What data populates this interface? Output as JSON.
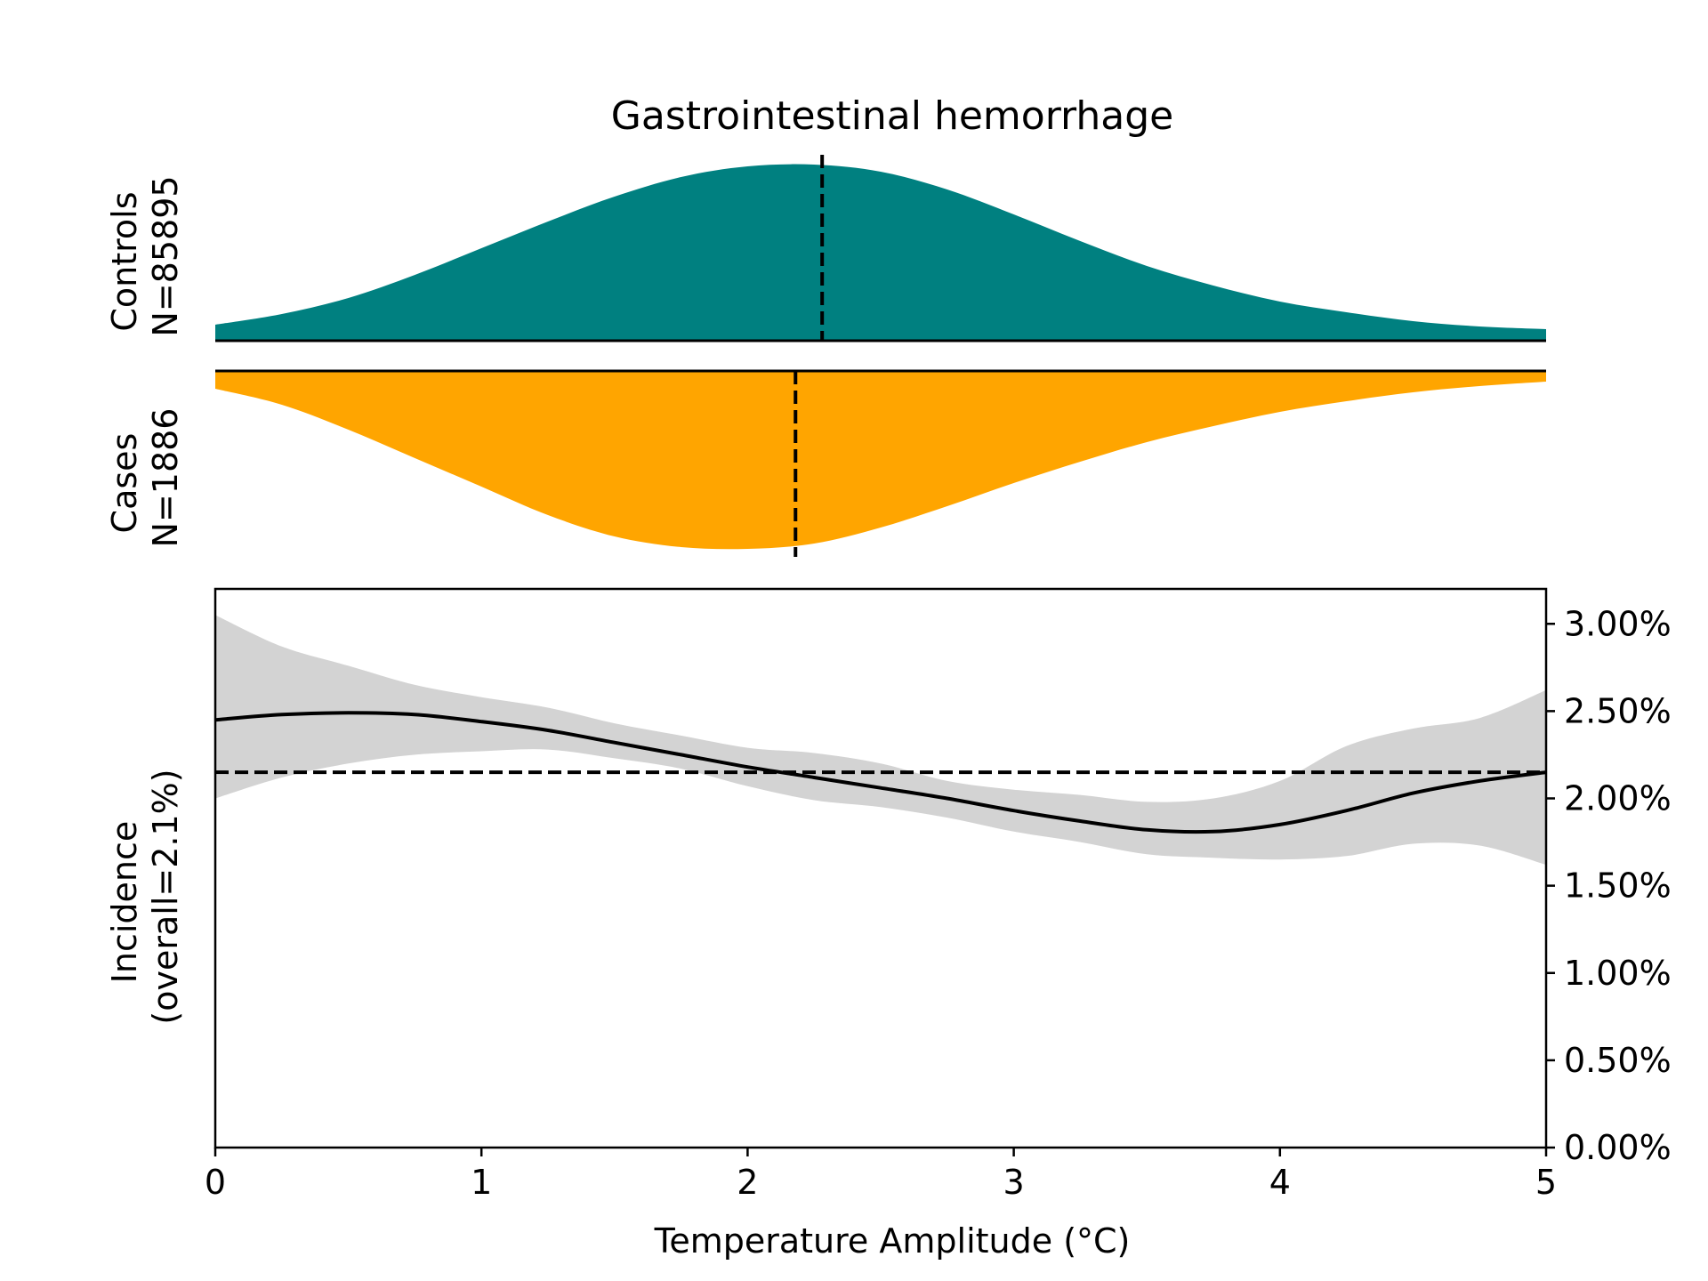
{
  "chart_data": {
    "type": "area",
    "title": "Gastrointestinal hemorrhage",
    "xlabel": "Temperature Amplitude (°C)",
    "ylabel_line1": "Incidence",
    "ylabel_line2": "(overall=2.1%)",
    "xlim": [
      0,
      5
    ],
    "x_ticks": [
      0,
      1,
      2,
      3,
      4,
      5
    ],
    "x_tick_labels": [
      "0",
      "1",
      "2",
      "3",
      "4",
      "5"
    ],
    "ylim": [
      0,
      3.2
    ],
    "y_axis_side": "right",
    "y_ticks": [
      0,
      0.5,
      1.0,
      1.5,
      2.0,
      2.5,
      3.0
    ],
    "y_tick_labels": [
      "0.00%",
      "0.50%",
      "1.00%",
      "1.50%",
      "2.00%",
      "2.50%",
      "3.00%"
    ],
    "overall_incidence": 2.15,
    "distributions": {
      "controls": {
        "label_line1": "Controls",
        "label_line2": "N=85895",
        "color": "#008080",
        "median": 2.28,
        "x": [
          0,
          0.25,
          0.5,
          0.75,
          1.0,
          1.25,
          1.5,
          1.75,
          2.0,
          2.25,
          2.5,
          2.75,
          3.0,
          3.25,
          3.5,
          3.75,
          4.0,
          4.25,
          4.5,
          4.75,
          5.0
        ],
        "density": [
          0.09,
          0.15,
          0.24,
          0.37,
          0.52,
          0.67,
          0.81,
          0.92,
          0.98,
          0.99,
          0.95,
          0.85,
          0.71,
          0.56,
          0.42,
          0.31,
          0.22,
          0.16,
          0.11,
          0.08,
          0.065
        ]
      },
      "cases": {
        "label_line1": "Cases",
        "label_line2": "N=1886",
        "color": "#FFA500",
        "median": 2.18,
        "x": [
          0,
          0.25,
          0.5,
          0.75,
          1.0,
          1.25,
          1.5,
          1.75,
          2.0,
          2.25,
          2.5,
          2.75,
          3.0,
          3.25,
          3.5,
          3.75,
          4.0,
          4.25,
          4.5,
          4.75,
          5.0
        ],
        "density": [
          0.1,
          0.19,
          0.33,
          0.49,
          0.65,
          0.81,
          0.93,
          0.99,
          1.0,
          0.97,
          0.88,
          0.76,
          0.63,
          0.51,
          0.4,
          0.31,
          0.23,
          0.17,
          0.12,
          0.085,
          0.06
        ]
      }
    },
    "series": [
      {
        "x": [
          0,
          0.25,
          0.5,
          0.75,
          1.0,
          1.25,
          1.5,
          1.75,
          2.0,
          2.25,
          2.5,
          2.75,
          3.0,
          3.25,
          3.5,
          3.75,
          4.0,
          4.25,
          4.5,
          4.75,
          5.0
        ],
        "y": [
          2.45,
          2.48,
          2.49,
          2.48,
          2.44,
          2.39,
          2.32,
          2.25,
          2.18,
          2.12,
          2.06,
          2.0,
          1.93,
          1.87,
          1.82,
          1.81,
          1.85,
          1.93,
          2.03,
          2.1,
          2.15
        ],
        "ci_lower": [
          2.0,
          2.12,
          2.2,
          2.25,
          2.27,
          2.28,
          2.23,
          2.17,
          2.07,
          1.99,
          1.95,
          1.89,
          1.81,
          1.75,
          1.68,
          1.66,
          1.65,
          1.67,
          1.74,
          1.73,
          1.62
        ],
        "ci_upper": [
          3.05,
          2.87,
          2.76,
          2.65,
          2.58,
          2.52,
          2.43,
          2.36,
          2.29,
          2.26,
          2.2,
          2.1,
          2.05,
          2.02,
          1.98,
          2.0,
          2.1,
          2.3,
          2.4,
          2.46,
          2.62
        ]
      }
    ],
    "colors": {
      "ci_band": "#d3d3d3",
      "line": "#000000",
      "reference_line": "#000000"
    }
  }
}
